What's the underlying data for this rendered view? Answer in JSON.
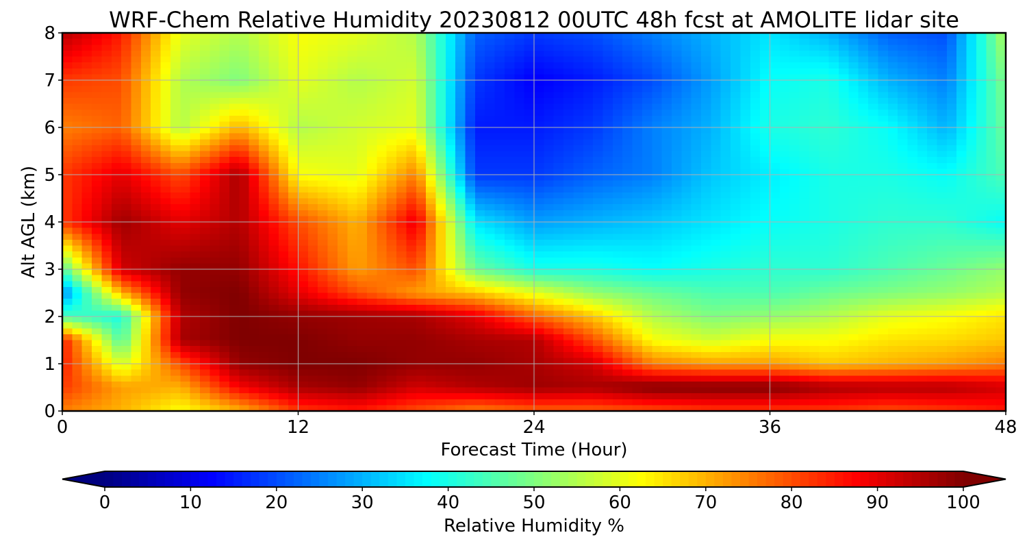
{
  "chart_data": {
    "type": "heatmap",
    "title": "WRF-Chem Relative Humidity 20230812 00UTC 48h fcst at AMOLITE lidar site",
    "xlabel": "Forecast Time (Hour)",
    "ylabel": "Alt AGL (km)",
    "xlim": [
      0,
      48
    ],
    "ylim": [
      0,
      8
    ],
    "x_ticks": [
      "0",
      "12",
      "24",
      "36",
      "48"
    ],
    "y_ticks": [
      "0",
      "1",
      "2",
      "3",
      "4",
      "5",
      "6",
      "7",
      "8"
    ],
    "grid": true,
    "colormap": "jet",
    "colorbar": {
      "label": "Relative Humidity %",
      "range": [
        0,
        100
      ],
      "ticks": [
        "0",
        "10",
        "20",
        "30",
        "40",
        "50",
        "60",
        "70",
        "80",
        "90",
        "100"
      ],
      "extend": "both",
      "orientation": "horizontal"
    },
    "x": [
      0,
      3,
      6,
      9,
      12,
      15,
      18,
      21,
      24,
      27,
      30,
      33,
      36,
      39,
      42,
      45,
      48
    ],
    "y": [
      0,
      0.5,
      1,
      1.5,
      2,
      2.5,
      3,
      4,
      5,
      6,
      7,
      8
    ],
    "z": [
      [
        75,
        70,
        62,
        70,
        82,
        85,
        80,
        75,
        78,
        78,
        80,
        82,
        82,
        82,
        80,
        82,
        85
      ],
      [
        82,
        72,
        70,
        88,
        96,
        98,
        92,
        95,
        97,
        96,
        100,
        100,
        100,
        96,
        95,
        95,
        92
      ],
      [
        85,
        58,
        80,
        98,
        100,
        100,
        98,
        98,
        96,
        92,
        75,
        72,
        72,
        68,
        70,
        72,
        75
      ],
      [
        85,
        45,
        96,
        100,
        100,
        98,
        98,
        96,
        95,
        80,
        62,
        58,
        62,
        62,
        65,
        66,
        68
      ],
      [
        45,
        40,
        95,
        100,
        98,
        97,
        96,
        90,
        78,
        68,
        55,
        50,
        52,
        55,
        60,
        62,
        65
      ],
      [
        25,
        70,
        98,
        100,
        90,
        80,
        72,
        68,
        60,
        52,
        48,
        45,
        45,
        48,
        50,
        52,
        55
      ],
      [
        45,
        92,
        98,
        98,
        86,
        72,
        80,
        48,
        40,
        40,
        38,
        40,
        42,
        42,
        45,
        48,
        52
      ],
      [
        82,
        97,
        90,
        95,
        80,
        70,
        90,
        35,
        28,
        30,
        32,
        35,
        38,
        40,
        42,
        42,
        38
      ],
      [
        82,
        90,
        80,
        96,
        62,
        60,
        75,
        18,
        18,
        22,
        25,
        32,
        36,
        40,
        40,
        38,
        45
      ],
      [
        75,
        78,
        55,
        70,
        55,
        58,
        60,
        15,
        15,
        18,
        25,
        30,
        40,
        42,
        38,
        30,
        48
      ],
      [
        82,
        80,
        55,
        50,
        60,
        55,
        58,
        18,
        12,
        15,
        20,
        28,
        38,
        40,
        30,
        25,
        50
      ],
      [
        95,
        85,
        60,
        55,
        62,
        60,
        55,
        22,
        18,
        20,
        25,
        30,
        35,
        30,
        22,
        20,
        55
      ]
    ]
  }
}
